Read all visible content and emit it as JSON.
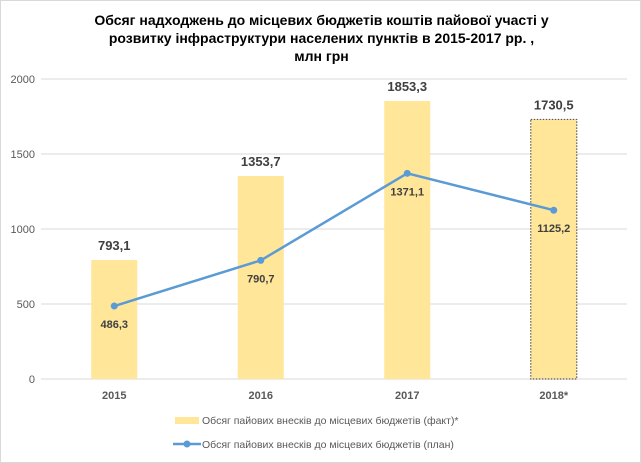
{
  "chart_data": {
    "type": "bar+line",
    "title_lines": [
      "Обсяг надходжень до місцевих бюджетів коштів пайової участі  у",
      "розвитку  інфраструктури  населених пунктів в 2015-2017 рр. ,",
      "млн грн"
    ],
    "categories": [
      "2015",
      "2016",
      "2017",
      "2018*"
    ],
    "ylim": [
      0,
      2000
    ],
    "yticks": [
      0,
      500,
      1000,
      1500,
      2000
    ],
    "grid": true,
    "legend_position": "bottom",
    "series": [
      {
        "name": "Обсяг пайових внесків до місцевих бюджетів (факт)*",
        "kind": "bar",
        "color": "#FFE699",
        "values": [
          793.1,
          1353.7,
          1853.3,
          1730.5
        ],
        "labels": [
          "793,1",
          "1353,7",
          "1853,3",
          "1730,5"
        ]
      },
      {
        "name": "Обсяг пайових внесків до місцевих бюджетів (план)",
        "kind": "line",
        "color": "#5B9BD5",
        "values": [
          486.3,
          790.7,
          1371.1,
          1125.2
        ],
        "labels": [
          "486,3",
          "790,7",
          "1371,1",
          "1125,2"
        ]
      }
    ]
  }
}
